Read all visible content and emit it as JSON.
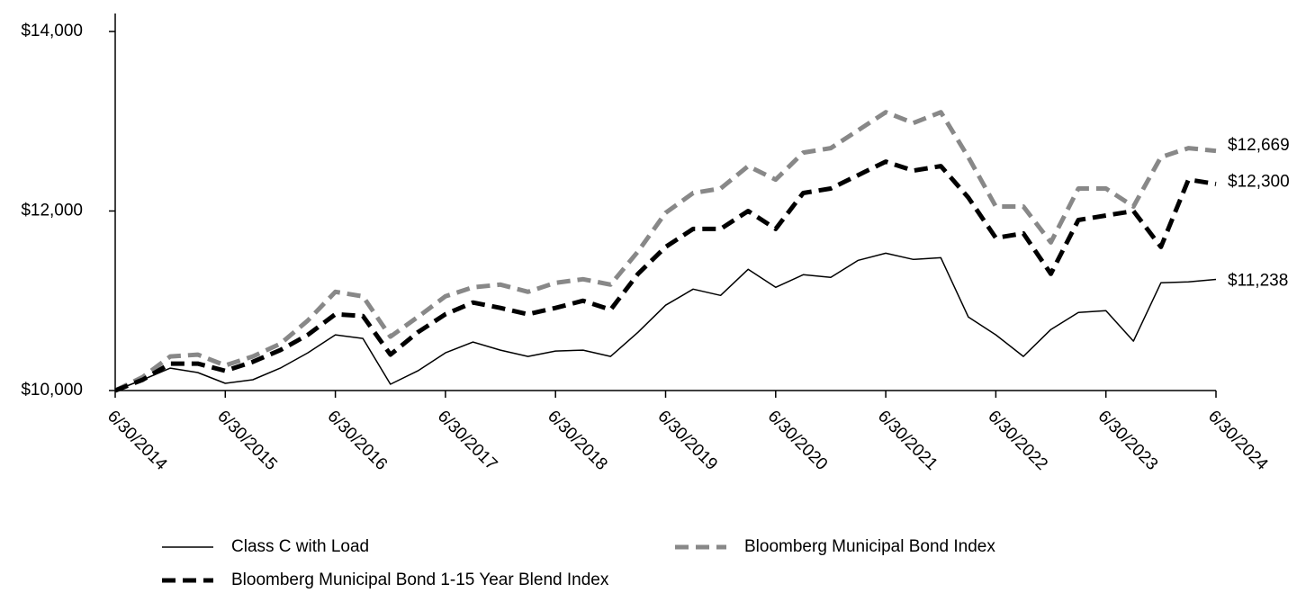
{
  "chart_data": {
    "type": "line",
    "categories": [
      "6/30/2014",
      null,
      null,
      null,
      "6/30/2015",
      null,
      null,
      null,
      "6/30/2016",
      null,
      null,
      null,
      "6/30/2017",
      null,
      null,
      null,
      "6/30/2018",
      null,
      null,
      null,
      "6/30/2019",
      null,
      null,
      null,
      "6/30/2020",
      null,
      null,
      null,
      "6/30/2021",
      null,
      null,
      null,
      "6/30/2022",
      null,
      null,
      null,
      "6/30/2023",
      null,
      null,
      null,
      "6/30/2024"
    ],
    "ylim": [
      10000,
      14200
    ],
    "yticks": [
      {
        "value": 10000,
        "label": "$10,000"
      },
      {
        "value": 12000,
        "label": "$12,000"
      },
      {
        "value": 14000,
        "label": "$14,000"
      }
    ],
    "series": [
      {
        "name": "Class C with Load",
        "color": "#000000",
        "style": "solid",
        "end_label": "$11,238",
        "values": [
          10000,
          10120,
          10250,
          10200,
          10080,
          10120,
          10250,
          10420,
          10620,
          10580,
          10070,
          10220,
          10420,
          10540,
          10450,
          10380,
          10440,
          10450,
          10380,
          10650,
          10950,
          11130,
          11060,
          11350,
          11150,
          11290,
          11260,
          11450,
          11530,
          11460,
          11480,
          10820,
          10620,
          10380,
          10680,
          10870,
          10890,
          10550,
          11200,
          11210,
          11238
        ]
      },
      {
        "name": "Bloomberg Municipal Bond Index",
        "color": "#888888",
        "style": "dashed",
        "end_label": "$12,669",
        "values": [
          10000,
          10150,
          10380,
          10400,
          10280,
          10380,
          10520,
          10780,
          11100,
          11050,
          10600,
          10820,
          11050,
          11150,
          11180,
          11100,
          11200,
          11240,
          11180,
          11550,
          11980,
          12200,
          12250,
          12500,
          12350,
          12650,
          12700,
          12900,
          13100,
          12980,
          13100,
          12600,
          12050,
          12050,
          11650,
          12250,
          12250,
          12050,
          12600,
          12700,
          12669
        ]
      },
      {
        "name": "Bloomberg Municipal Bond 1-15 Year Blend Index",
        "color": "#000000",
        "style": "dashed",
        "end_label": "$12,300",
        "values": [
          10000,
          10120,
          10300,
          10300,
          10220,
          10320,
          10450,
          10620,
          10850,
          10830,
          10400,
          10650,
          10850,
          10980,
          10920,
          10850,
          10920,
          11000,
          10900,
          11300,
          11600,
          11800,
          11800,
          12000,
          11800,
          12200,
          12250,
          12400,
          12550,
          12450,
          12500,
          12150,
          11700,
          11750,
          11300,
          11900,
          11950,
          12000,
          11600,
          12350,
          12300
        ]
      }
    ]
  }
}
